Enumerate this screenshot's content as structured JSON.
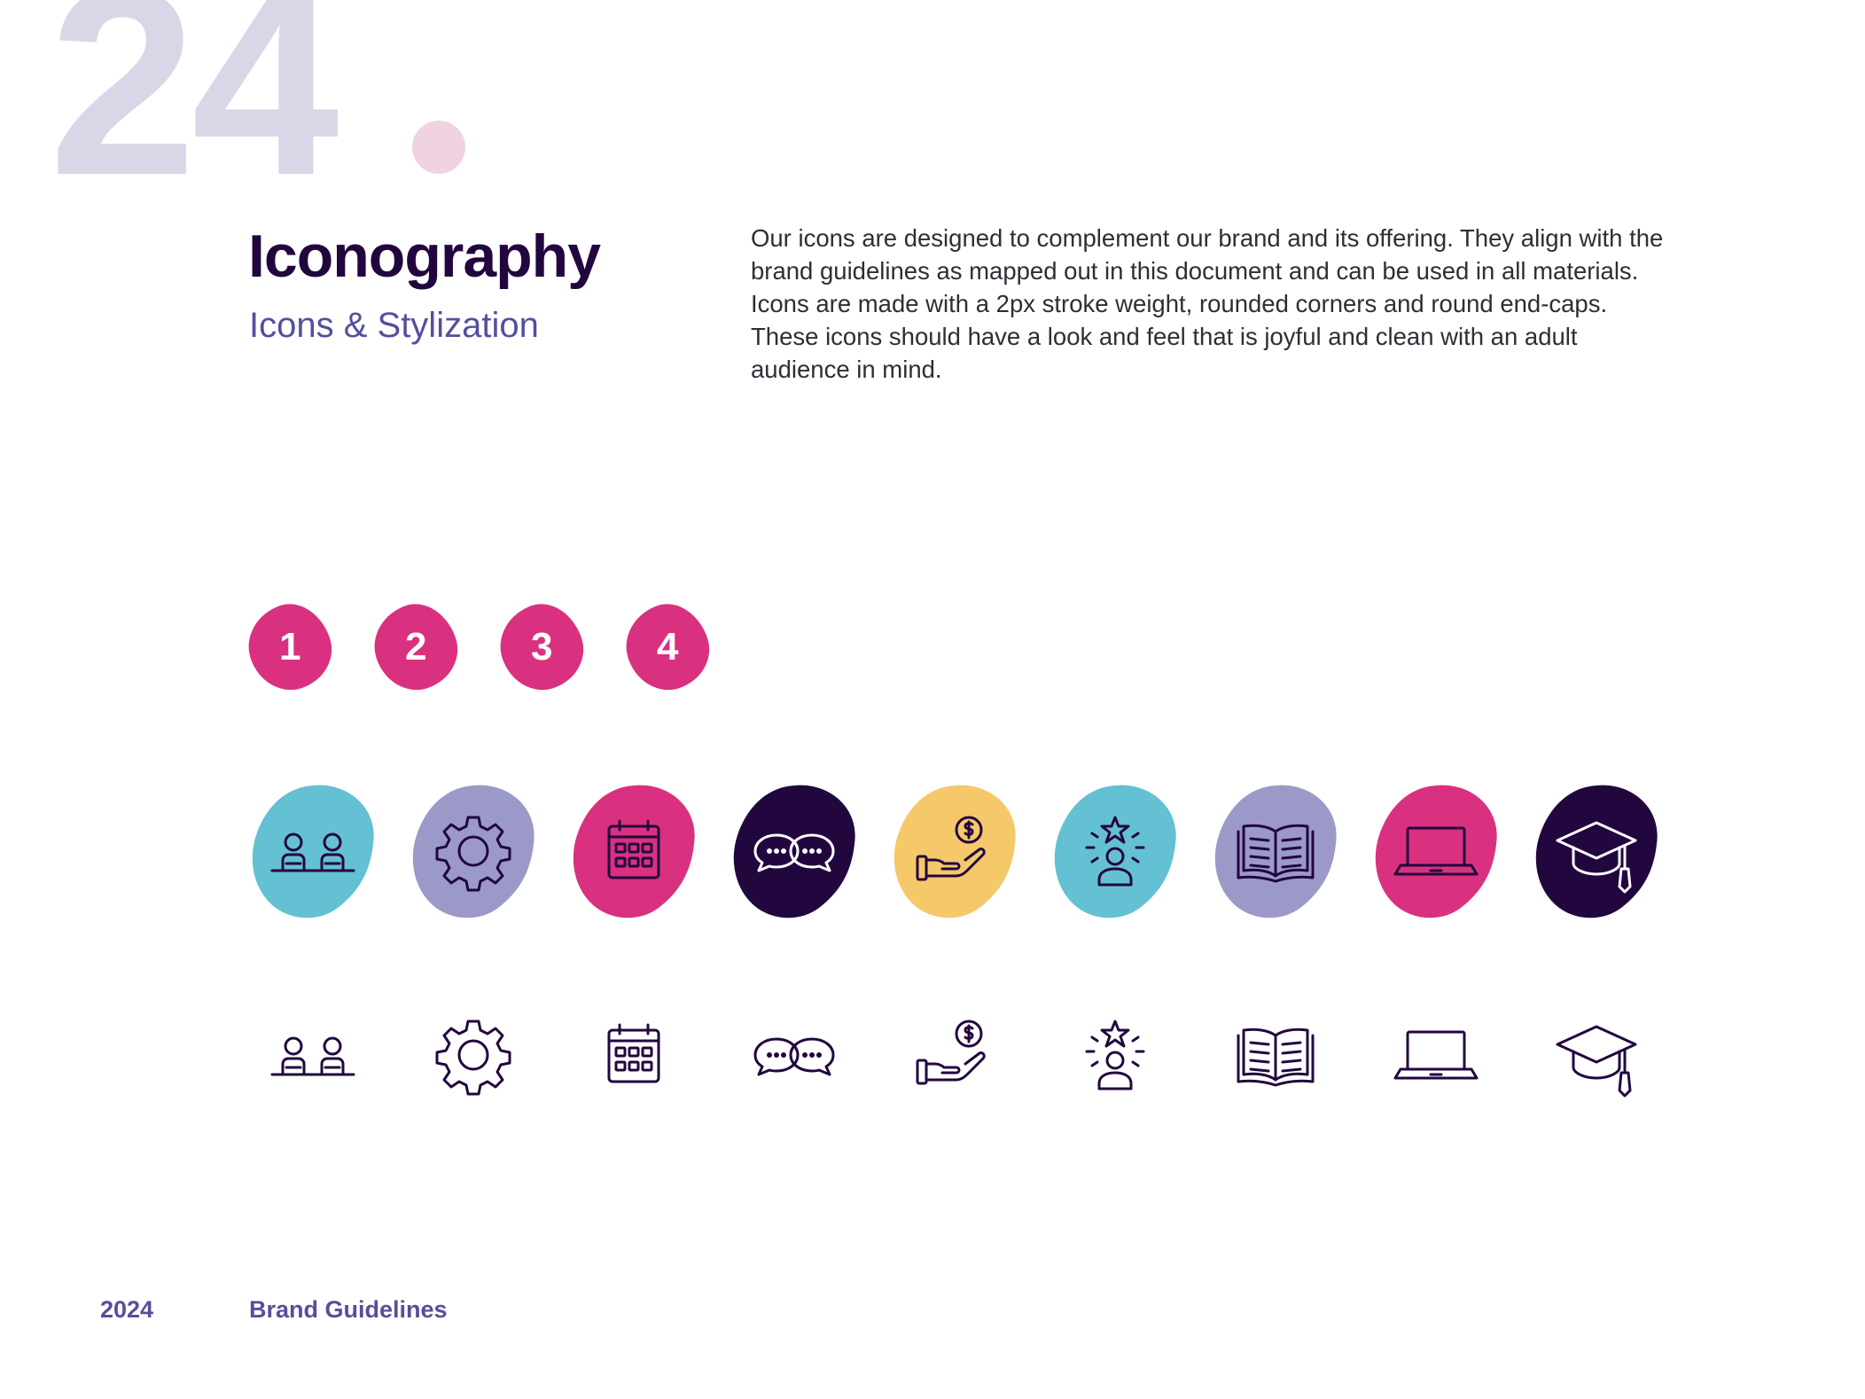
{
  "page": {
    "number": "24",
    "title": "Iconography",
    "subtitle": "Icons & Stylization",
    "description": "Our icons are designed to complement our brand and its offering. They align with the brand guidelines as mapped out in this document and can be used in all materials. Icons are made with a 2px stroke weight, rounded corners and round end-caps. These icons should have a look and feel that is joyful and clean with an adult audience in mind."
  },
  "colors": {
    "page_number": "#d8d7e8",
    "dot": "#f0d2e2",
    "title": "#22073f",
    "subtitle": "#544f9d",
    "pink": "#d9317f",
    "teal": "#64c0d3",
    "lavender": "#9b99c8",
    "navy": "#22073f",
    "yellow": "#f5c86a"
  },
  "badges": [
    "1",
    "2",
    "3",
    "4"
  ],
  "icons": [
    {
      "name": "people-icon",
      "bg": "teal"
    },
    {
      "name": "gear-icon",
      "bg": "lavender"
    },
    {
      "name": "calendar-icon",
      "bg": "pink"
    },
    {
      "name": "chat-bubbles-icon",
      "bg": "navy"
    },
    {
      "name": "hand-money-icon",
      "bg": "yellow"
    },
    {
      "name": "star-person-icon",
      "bg": "teal"
    },
    {
      "name": "open-book-icon",
      "bg": "lavender"
    },
    {
      "name": "laptop-icon",
      "bg": "pink"
    },
    {
      "name": "graduation-cap-icon",
      "bg": "navy"
    }
  ],
  "footer": {
    "year": "2024",
    "doc_title": "Brand Guidelines"
  }
}
